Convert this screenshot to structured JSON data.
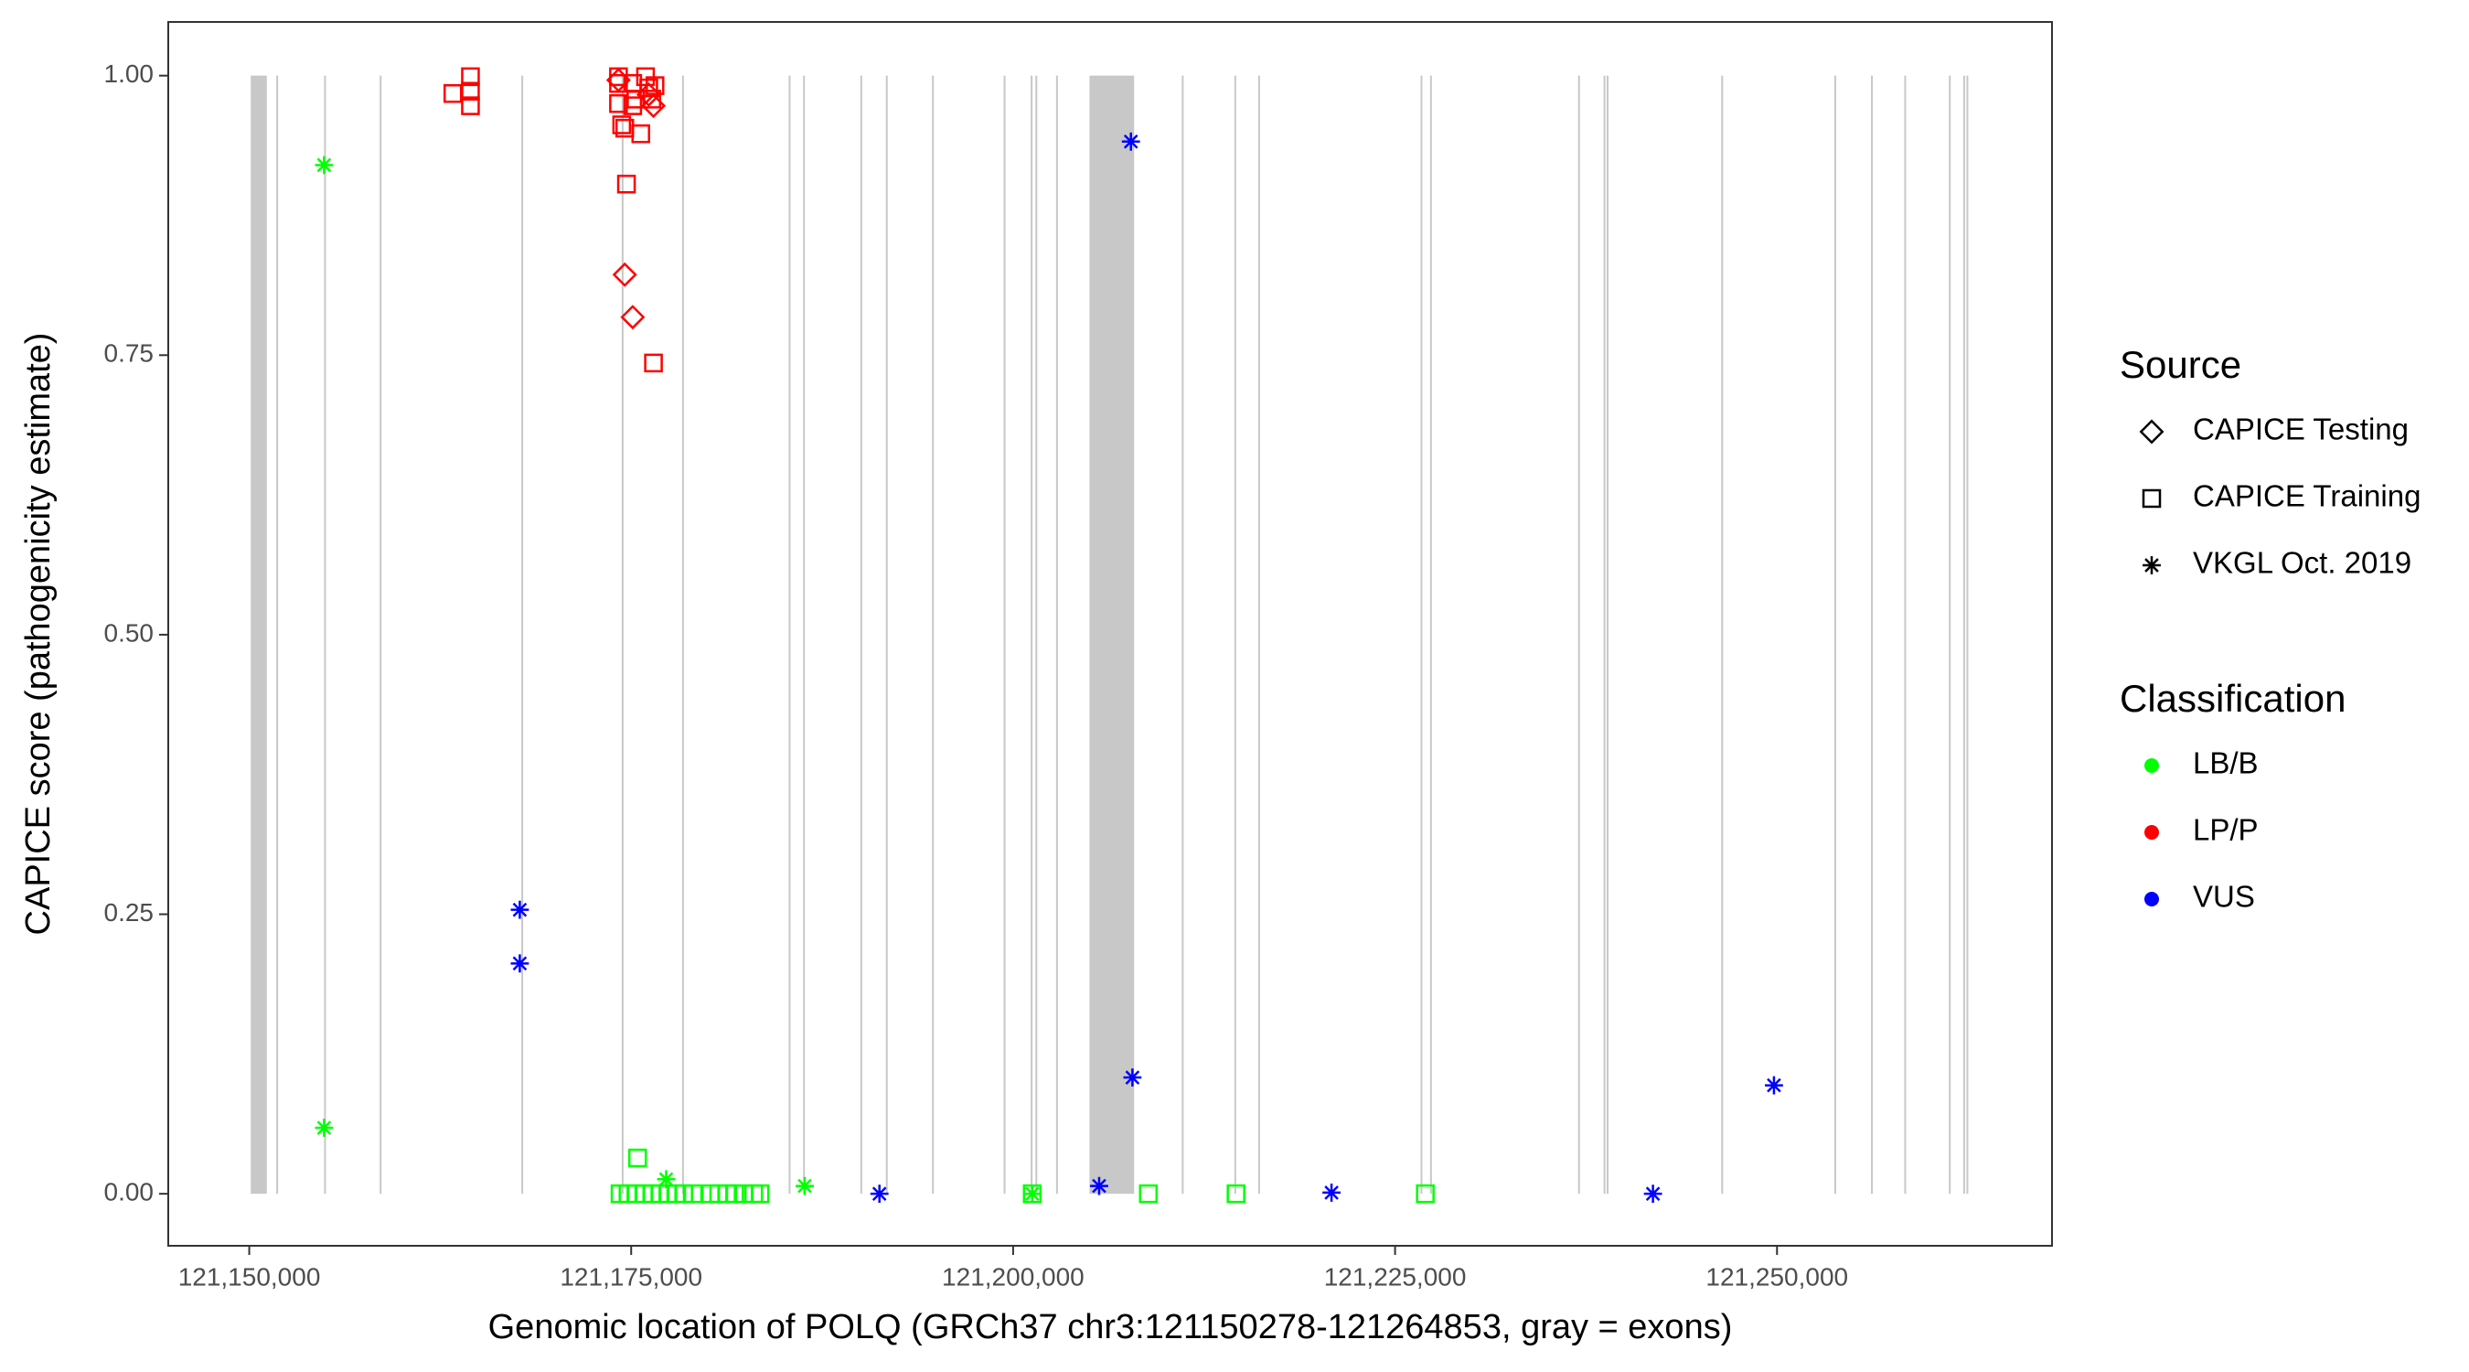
{
  "chart_data": {
    "type": "scatter",
    "x_label": "Genomic location of POLQ (GRCh37 chr3:121150278-121264853, gray = exons)",
    "y_label": "CAPICE score (pathogenicity estimate)",
    "xlim": [
      121144700,
      121268000
    ],
    "ylim": [
      -0.0465,
      1.048
    ],
    "xticks": [
      {
        "value": 121150000,
        "label": "121,150,000"
      },
      {
        "value": 121175000,
        "label": "121,175,000"
      },
      {
        "value": 121200000,
        "label": "121,200,000"
      },
      {
        "value": 121225000,
        "label": "121,225,000"
      },
      {
        "value": 121250000,
        "label": "121,250,000"
      }
    ],
    "yticks": [
      {
        "value": 0,
        "label": "0.00"
      },
      {
        "value": 0.25,
        "label": "0.25"
      },
      {
        "value": 0.5,
        "label": "0.50"
      },
      {
        "value": 0.75,
        "label": "0.75"
      },
      {
        "value": 1,
        "label": "1.00"
      }
    ],
    "exon_color": "#c8c8c8",
    "exons": [
      [
        121150100,
        121151150
      ],
      [
        121151770,
        121151890
      ],
      [
        121154900,
        121155020
      ],
      [
        121158540,
        121158660
      ],
      [
        121167810,
        121167930
      ],
      [
        121174380,
        121174500
      ],
      [
        121178330,
        121178450
      ],
      [
        121185310,
        121185430
      ],
      [
        121186250,
        121186370
      ],
      [
        121190000,
        121190120
      ],
      [
        121191670,
        121191790
      ],
      [
        121194690,
        121194810
      ],
      [
        121199380,
        121199500
      ],
      [
        121201150,
        121201270
      ],
      [
        121201460,
        121201580
      ],
      [
        121202810,
        121202930
      ],
      [
        121205000,
        121207920
      ],
      [
        121211040,
        121211160
      ],
      [
        121214480,
        121214600
      ],
      [
        121216040,
        121216160
      ],
      [
        121226670,
        121226790
      ],
      [
        121227290,
        121227410
      ],
      [
        121236980,
        121237100
      ],
      [
        121238650,
        121238770
      ],
      [
        121238850,
        121238970
      ],
      [
        121246350,
        121246470
      ],
      [
        121253750,
        121253870
      ],
      [
        121256150,
        121256270
      ],
      [
        121258330,
        121258450
      ],
      [
        121261250,
        121261370
      ],
      [
        121262190,
        121262310
      ],
      [
        121262400,
        121262520
      ]
    ],
    "legend_source_title": "Source",
    "sources": [
      {
        "name": "CAPICE Testing",
        "shape": "diamond"
      },
      {
        "name": "CAPICE Training",
        "shape": "square"
      },
      {
        "name": "VKGL Oct. 2019",
        "shape": "asterisk"
      }
    ],
    "legend_class_title": "Classification",
    "classifications": [
      {
        "name": "LB/B",
        "color": "#00ff00"
      },
      {
        "name": "LP/P",
        "color": "#ff0000"
      },
      {
        "name": "VUS",
        "color": "#0000ff"
      }
    ],
    "series": [
      {
        "source": 1,
        "classification": 0,
        "x": [
          121174270,
          121175420,
          121174790,
          121175310,
          121175830,
          121176350,
          121176880,
          121177400,
          121177920,
          121178440,
          121179060,
          121180210,
          121180730,
          121181250,
          121181770,
          121182400,
          121183020,
          121183440,
          121201250,
          121208850,
          121214590,
          121226980
        ],
        "y": [
          0,
          0.032,
          0,
          0,
          0,
          0,
          0,
          0,
          0,
          0,
          0,
          0,
          0,
          0,
          0,
          0,
          0,
          0,
          0,
          0,
          0,
          0
        ]
      },
      {
        "source": 1,
        "classification": 1,
        "x": [
          121163330,
          121164480,
          121164480,
          121164480,
          121174170,
          121174170,
          121174170,
          121174380,
          121174580,
          121174690,
          121175100,
          121175100,
          121175630,
          121175940,
          121176150,
          121176350,
          121176460,
          121175310,
          121176560
        ],
        "y": [
          0.984,
          0.999,
          0.986,
          0.973,
          0.999,
          0.993,
          0.975,
          0.956,
          0.953,
          0.903,
          0.993,
          0.973,
          0.948,
          0.999,
          0.989,
          0.979,
          0.743,
          0.979,
          0.991
        ]
      },
      {
        "source": 0,
        "classification": 1,
        "x": [
          121174580,
          121175100,
          121176460,
          121174170,
          121176150
        ],
        "y": [
          0.822,
          0.784,
          0.973,
          0.996,
          0.983
        ]
      },
      {
        "source": 2,
        "classification": 0,
        "x": [
          121154900,
          121154900,
          121177290,
          121186360,
          121201250
        ],
        "y": [
          0.92,
          0.059,
          0.013,
          0.007,
          0
        ]
      },
      {
        "source": 2,
        "classification": 2,
        "x": [
          121167710,
          121167710,
          121191250,
          121205630,
          121207710,
          121207810,
          121220840,
          121241880,
          121249800
        ],
        "y": [
          0.254,
          0.206,
          0,
          0.007,
          0.941,
          0.104,
          0.001,
          0,
          0.097
        ]
      }
    ]
  }
}
